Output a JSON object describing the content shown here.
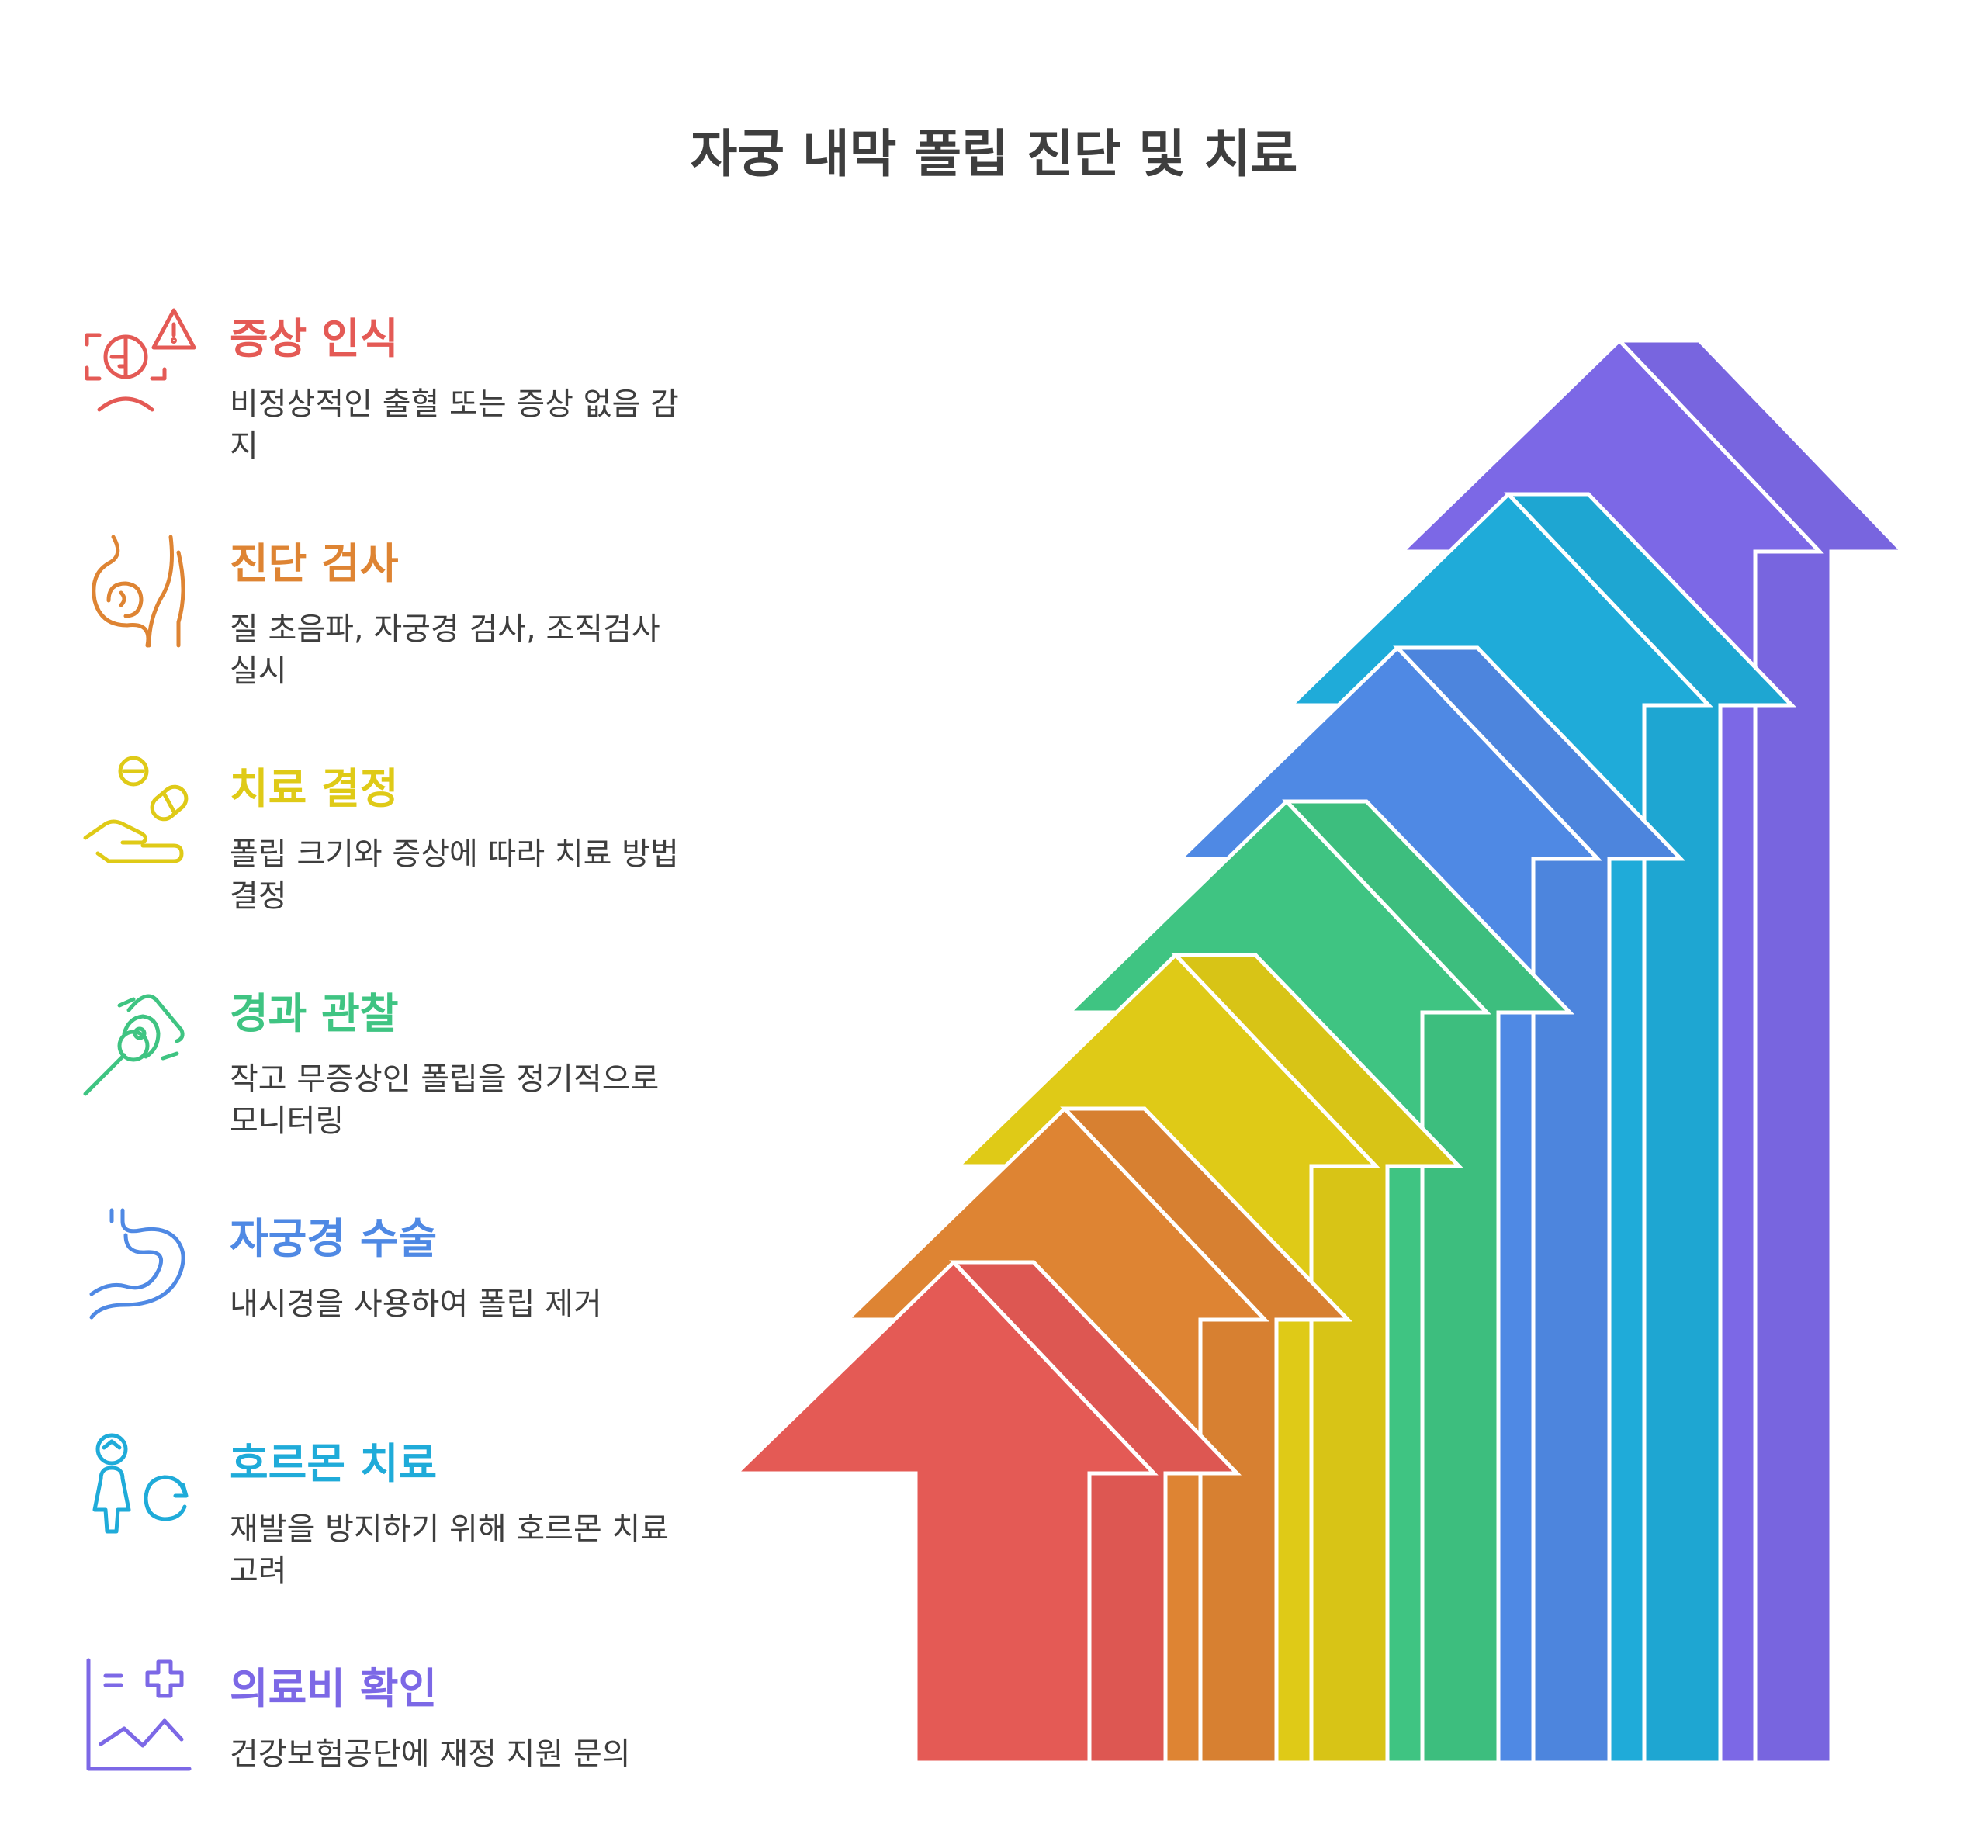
{
  "title": "자궁 내막 폴립 진단 및 치료",
  "steps": [
    {
      "title": "증상 인식",
      "desc": "비정상적인 출혈 또는 증상 없음 감지",
      "color": "#e45a55",
      "icon": "patient-alert-icon"
    },
    {
      "title": "진단 검사",
      "desc": "질 초음파, 자궁경 검사, 조직검사 실시",
      "color": "#de8433",
      "icon": "pregnancy-belly-icon"
    },
    {
      "title": "치료 결정",
      "desc": "폴립 크기와 증상에 따라 치료 방법 결정",
      "color": "#dfca17",
      "icon": "hand-pills-icon"
    },
    {
      "title": "경과 관찰",
      "desc": "작고 무증상인 폴립을 정기적으로 모니터링",
      "color": "#3fc482",
      "icon": "magnifier-cell-icon"
    },
    {
      "title": "자궁경 수술",
      "desc": "내시경을 사용하여 폴립 제거",
      "color": "#4f89e4",
      "icon": "stomach-organ-icon"
    },
    {
      "title": "호르몬 치료",
      "desc": "재발을 방지하기 위해 호르몬 치료 고려",
      "color": "#1fabd9",
      "icon": "person-cycle-icon"
    },
    {
      "title": "의료비 확인",
      "desc": "건강보험공단에 재정 지원 문의",
      "color": "#7c68e6",
      "icon": "medical-chart-icon"
    }
  ]
}
